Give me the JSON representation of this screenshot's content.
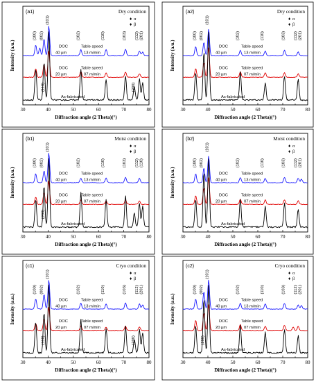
{
  "axis": {
    "xlabel": "Diffraction angle (2 Theta)(°)",
    "ylabel": "Intensity (a.u.)",
    "xlim": [
      30,
      80
    ],
    "xticks": [
      "30",
      "40",
      "50",
      "60",
      "70",
      "80"
    ]
  },
  "legend": {
    "alpha": "α",
    "beta": "β"
  },
  "colors": {
    "doc40": "#1a1aff",
    "doc20": "#e00000",
    "asfab": "#000000"
  },
  "chart_data": [
    {
      "panel": "a1",
      "label": "(a1)",
      "condition": "Dry condition",
      "type": "line",
      "series": [
        {
          "name": "DOC 40 µm, Table speed 13 m/min",
          "color": "#1a1aff",
          "peaks": [
            [
              35.1,
              0.35
            ],
            [
              36.7,
              0.25
            ],
            [
              38.4,
              0.55
            ],
            [
              40.3,
              1.0
            ],
            [
              53.0,
              0.2
            ],
            [
              63.0,
              0.2
            ],
            [
              70.7,
              0.22
            ],
            [
              76.2,
              0.15
            ],
            [
              77.5,
              0.12
            ]
          ]
        },
        {
          "name": "DOC 20 µm, Table speed 07 m/min",
          "color": "#e00000",
          "peaks": [
            [
              35.1,
              0.3
            ],
            [
              38.4,
              0.45
            ],
            [
              40.3,
              0.9
            ],
            [
              53.0,
              0.2
            ],
            [
              63.0,
              0.15
            ],
            [
              70.7,
              0.18
            ],
            [
              76.2,
              0.12
            ]
          ]
        },
        {
          "name": "As-fabricated",
          "color": "#000000",
          "peaks": [
            [
              35.1,
              0.45
            ],
            [
              38.4,
              0.55
            ],
            [
              40.3,
              1.0
            ],
            [
              53.0,
              0.45
            ],
            [
              63.0,
              0.3
            ],
            [
              70.7,
              0.35
            ],
            [
              74.2,
              0.2
            ],
            [
              76.2,
              0.3
            ],
            [
              77.5,
              0.25
            ]
          ]
        }
      ],
      "annotations": [
        "(100)",
        "(002)",
        "(101)",
        "(102)",
        "(110)",
        "(103)",
        "(112)",
        "(201)",
        "(110)",
        "(200)"
      ],
      "line_notes": [
        {
          "series": "DOC 40 µm",
          "doc": "DOC",
          "depth": "40 µm",
          "speed_label": "Table speed",
          "speed": "13 m/min"
        },
        {
          "series": "DOC 20 µm",
          "doc": "DOC",
          "depth": "20 µm",
          "speed_label": "Table speed",
          "speed": "07 m/min"
        },
        {
          "series": "As-fabricated",
          "text": "As-fabricated"
        }
      ]
    },
    {
      "panel": "a2",
      "label": "(a2)",
      "condition": "Dry condition",
      "type": "line",
      "series": [
        {
          "name": "DOC 40 µm, Table speed 13 m/min",
          "color": "#1a1aff",
          "peaks": [
            [
              35.1,
              0.3
            ],
            [
              38.4,
              0.45
            ],
            [
              40.3,
              0.9
            ],
            [
              53.0,
              0.18
            ],
            [
              63.0,
              0.15
            ],
            [
              70.7,
              0.18
            ],
            [
              76.2,
              0.12
            ]
          ]
        },
        {
          "name": "DOC 20 µm, Table speed 07 m/min",
          "color": "#e00000",
          "peaks": [
            [
              35.1,
              0.3
            ],
            [
              38.4,
              0.5
            ],
            [
              40.3,
              1.0
            ],
            [
              53.0,
              0.18
            ],
            [
              63.0,
              0.15
            ],
            [
              70.7,
              0.15
            ],
            [
              76.2,
              0.12
            ]
          ]
        },
        {
          "name": "As-fabricated",
          "color": "#000000",
          "peaks": [
            [
              35.1,
              0.4
            ],
            [
              38.4,
              0.7
            ],
            [
              40.3,
              1.0
            ],
            [
              53.0,
              0.4
            ],
            [
              63.0,
              0.25
            ],
            [
              70.7,
              0.35
            ],
            [
              76.2,
              0.3
            ]
          ]
        }
      ],
      "annotations": [
        "(100)",
        "(002)",
        "(101)",
        "(102)",
        "(110)",
        "(103)",
        "(112)",
        "(201)"
      ],
      "line_notes": [
        {
          "series": "DOC 40 µm",
          "doc": "DOC",
          "depth": "40 µm",
          "speed_label": "Table speed",
          "speed": "13 m/min"
        },
        {
          "series": "DOC 20 µm",
          "doc": "DOC",
          "depth": "20 µm",
          "speed_label": "Table speed",
          "speed": "07 m/min"
        },
        {
          "series": "As-fabricated",
          "text": "As-fabricated"
        }
      ]
    },
    {
      "panel": "b1",
      "label": "(b1)",
      "condition": "Moist condition",
      "type": "line",
      "series": [
        {
          "name": "DOC 40 µm, Table speed 13 m/min",
          "color": "#1a1aff",
          "peaks": [
            [
              35.1,
              0.3
            ],
            [
              38.4,
              0.4
            ],
            [
              40.3,
              1.0
            ],
            [
              53.0,
              0.15
            ],
            [
              63.0,
              0.15
            ],
            [
              70.7,
              0.18
            ],
            [
              76.2,
              0.15
            ]
          ]
        },
        {
          "name": "DOC 20 µm, Table speed 07 m/min",
          "color": "#e00000",
          "peaks": [
            [
              35.1,
              0.25
            ],
            [
              38.4,
              0.4
            ],
            [
              40.3,
              0.8
            ],
            [
              53.0,
              0.15
            ],
            [
              63.0,
              0.12
            ],
            [
              70.7,
              0.15
            ],
            [
              76.2,
              0.12
            ]
          ]
        },
        {
          "name": "As-fabricated",
          "color": "#000000",
          "peaks": [
            [
              35.1,
              0.4
            ],
            [
              38.4,
              0.6
            ],
            [
              40.3,
              1.0
            ],
            [
              53.0,
              0.5
            ],
            [
              63.0,
              0.4
            ],
            [
              70.7,
              0.45
            ],
            [
              74.2,
              0.2
            ],
            [
              76.2,
              0.35
            ],
            [
              77.5,
              0.3
            ]
          ]
        }
      ],
      "annotations": [
        "(100)",
        "(002)",
        "(101)",
        "(102)",
        "(110)",
        "(103)",
        "(112)",
        "(110)",
        "(200)"
      ],
      "line_notes": [
        {
          "series": "DOC 40 µm",
          "doc": "DOC",
          "depth": "40 µm",
          "speed_label": "Table speed",
          "speed": "13 m/min"
        },
        {
          "series": "DOC 20 µm",
          "doc": "DOC",
          "depth": "20 µm",
          "speed_label": "Table speed",
          "speed": "07 m/min"
        },
        {
          "series": "As-fabricated",
          "text": "As-fabricated"
        }
      ]
    },
    {
      "panel": "b2",
      "label": "(b2)",
      "condition": "Moist condition",
      "type": "line",
      "series": [
        {
          "name": "DOC 40 µm, Table speed 13 m/min",
          "color": "#1a1aff",
          "peaks": [
            [
              35.1,
              0.3
            ],
            [
              38.4,
              0.5
            ],
            [
              40.3,
              0.9
            ],
            [
              53.0,
              0.18
            ],
            [
              63.0,
              0.15
            ],
            [
              70.7,
              0.18
            ],
            [
              76.2,
              0.15
            ],
            [
              77.5,
              0.12
            ]
          ]
        },
        {
          "name": "DOC 20 µm, Table speed 07 m/min",
          "color": "#e00000",
          "peaks": [
            [
              35.1,
              0.3
            ],
            [
              38.4,
              0.55
            ],
            [
              40.3,
              0.9
            ],
            [
              53.0,
              0.18
            ],
            [
              63.0,
              0.15
            ],
            [
              70.7,
              0.15
            ],
            [
              76.2,
              0.12
            ]
          ]
        },
        {
          "name": "As-fabricated",
          "color": "#000000",
          "peaks": [
            [
              35.1,
              0.4
            ],
            [
              38.4,
              0.8
            ],
            [
              40.3,
              1.0
            ],
            [
              53.0,
              0.4
            ],
            [
              63.0,
              0.3
            ],
            [
              70.7,
              0.35
            ],
            [
              76.2,
              0.25
            ]
          ]
        }
      ],
      "annotations": [
        "(100)",
        "(002)",
        "(101)",
        "(102)",
        "(110)",
        "(103)",
        "(112)",
        "(201)"
      ],
      "line_notes": [
        {
          "series": "DOC 40 µm",
          "doc": "DOC",
          "depth": "40 µm",
          "speed_label": "Table speed",
          "speed": "13 m/min"
        },
        {
          "series": "DOC 20 µm",
          "doc": "DOC",
          "depth": "20 µm",
          "speed_label": "Table speed",
          "speed": "07 m/min"
        },
        {
          "series": "As-fabricated",
          "text": "As-fabricated"
        }
      ]
    },
    {
      "panel": "c1",
      "label": "(c1)",
      "condition": "Cryo condition",
      "type": "line",
      "series": [
        {
          "name": "DOC 40 µm, Table speed 13 m/min",
          "color": "#1a1aff",
          "peaks": [
            [
              35.1,
              0.35
            ],
            [
              38.4,
              0.5
            ],
            [
              40.3,
              1.0
            ],
            [
              53.0,
              0.2
            ],
            [
              63.0,
              0.18
            ],
            [
              70.7,
              0.22
            ],
            [
              76.2,
              0.18
            ],
            [
              77.5,
              0.15
            ]
          ]
        },
        {
          "name": "DOC 20 µm, Table speed 07 m/min",
          "color": "#e00000",
          "peaks": [
            [
              35.1,
              0.25
            ],
            [
              38.4,
              0.4
            ],
            [
              40.3,
              0.8
            ],
            [
              53.0,
              0.15
            ],
            [
              63.0,
              0.12
            ],
            [
              70.7,
              0.15
            ],
            [
              76.2,
              0.12
            ]
          ]
        },
        {
          "name": "As-fabricated",
          "color": "#000000",
          "peaks": [
            [
              35.1,
              0.45
            ],
            [
              38.4,
              0.6
            ],
            [
              40.3,
              1.0
            ],
            [
              53.0,
              0.5
            ],
            [
              63.0,
              0.35
            ],
            [
              70.7,
              0.4
            ],
            [
              74.2,
              0.2
            ],
            [
              76.2,
              0.35
            ],
            [
              77.5,
              0.3
            ]
          ]
        }
      ],
      "annotations": [
        "(100)",
        "(002)",
        "(101)",
        "(102)",
        "(110)",
        "(103)",
        "(112)",
        "(201)",
        "(110)",
        "(200)"
      ],
      "line_notes": [
        {
          "series": "DOC 40 µm",
          "doc": "DOC",
          "depth": "40 µm",
          "speed_label": "Table speed",
          "speed": "13 m/min"
        },
        {
          "series": "DOC 20 µm",
          "doc": "DOC",
          "depth": "20 µm",
          "speed_label": "Table speed",
          "speed": "07 m/min"
        },
        {
          "series": "As-fabricated",
          "text": "As-fabricated"
        }
      ]
    },
    {
      "panel": "c2",
      "label": "(c2)",
      "condition": "Cryo condition",
      "type": "line",
      "series": [
        {
          "name": "DOC 40 µm, Table speed 13 m/min",
          "color": "#1a1aff",
          "peaks": [
            [
              35.1,
              0.35
            ],
            [
              38.4,
              0.6
            ],
            [
              40.3,
              1.0
            ],
            [
              53.0,
              0.2
            ],
            [
              63.0,
              0.18
            ],
            [
              70.7,
              0.2
            ],
            [
              76.2,
              0.15
            ],
            [
              77.5,
              0.12
            ]
          ]
        },
        {
          "name": "DOC 20 µm, Table speed 07 m/min",
          "color": "#e00000",
          "peaks": [
            [
              35.1,
              0.35
            ],
            [
              38.4,
              0.6
            ],
            [
              40.3,
              0.9
            ],
            [
              53.0,
              0.2
            ],
            [
              63.0,
              0.15
            ],
            [
              70.7,
              0.18
            ],
            [
              74.2,
              0.12
            ],
            [
              76.2,
              0.15
            ]
          ]
        },
        {
          "name": "As-fabricated",
          "color": "#000000",
          "peaks": [
            [
              35.1,
              0.4
            ],
            [
              38.4,
              0.8
            ],
            [
              40.3,
              1.0
            ],
            [
              53.0,
              0.4
            ],
            [
              63.0,
              0.3
            ],
            [
              70.7,
              0.35
            ],
            [
              76.2,
              0.25
            ]
          ]
        }
      ],
      "annotations": [
        "(100)",
        "(002)",
        "(101)",
        "(102)",
        "(110)",
        "(103)",
        "(112)",
        "(201)",
        "(200)"
      ],
      "line_notes": [
        {
          "series": "DOC 40 µm",
          "doc": "DOC",
          "depth": "40 µm",
          "speed_label": "Table speed",
          "speed": "13 m/min"
        },
        {
          "series": "DOC 20 µm",
          "doc": "DOC",
          "depth": "20 µm",
          "speed_label": "Table speed",
          "speed": "07 m/min"
        },
        {
          "series": "As-fabricated",
          "text": "As-fabricated"
        }
      ]
    }
  ]
}
